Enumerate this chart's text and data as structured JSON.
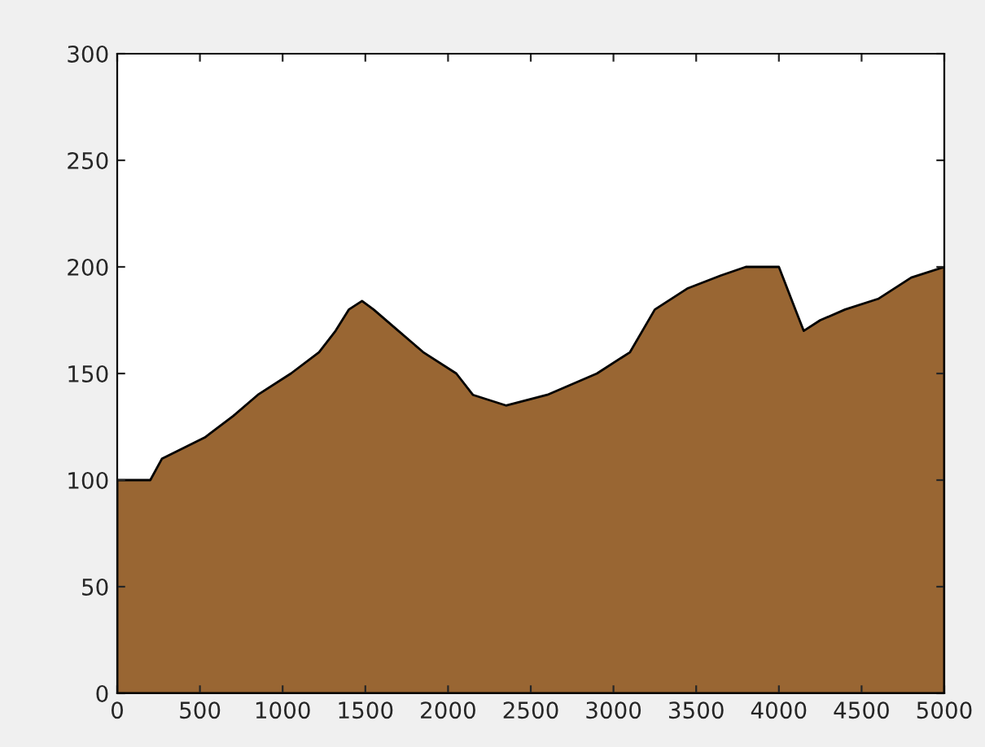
{
  "chart_data": {
    "type": "area",
    "x": [
      0,
      200,
      270,
      530,
      700,
      850,
      1050,
      1220,
      1320,
      1400,
      1480,
      1550,
      1700,
      1850,
      2050,
      2150,
      2350,
      2600,
      2900,
      3100,
      3250,
      3450,
      3650,
      3800,
      4000,
      4100,
      4150,
      4250,
      4400,
      4600,
      4800,
      5000
    ],
    "series": [
      {
        "color": "#996633",
        "values": [
          100,
          100,
          110,
          120,
          130,
          140,
          150,
          160,
          170,
          180,
          184,
          180,
          170,
          160,
          150,
          140,
          135,
          140,
          150,
          160,
          180,
          190,
          196,
          200,
          200,
          180,
          170,
          175,
          180,
          185,
          195,
          200
        ]
      }
    ],
    "xlim": [
      0,
      5000
    ],
    "ylim": [
      0,
      300
    ],
    "xticks": [
      0,
      500,
      1000,
      1500,
      2000,
      2500,
      3000,
      3500,
      4000,
      4500,
      5000
    ],
    "yticks": [
      0,
      50,
      100,
      150,
      200,
      250,
      300
    ],
    "grid": false,
    "legend": false
  }
}
